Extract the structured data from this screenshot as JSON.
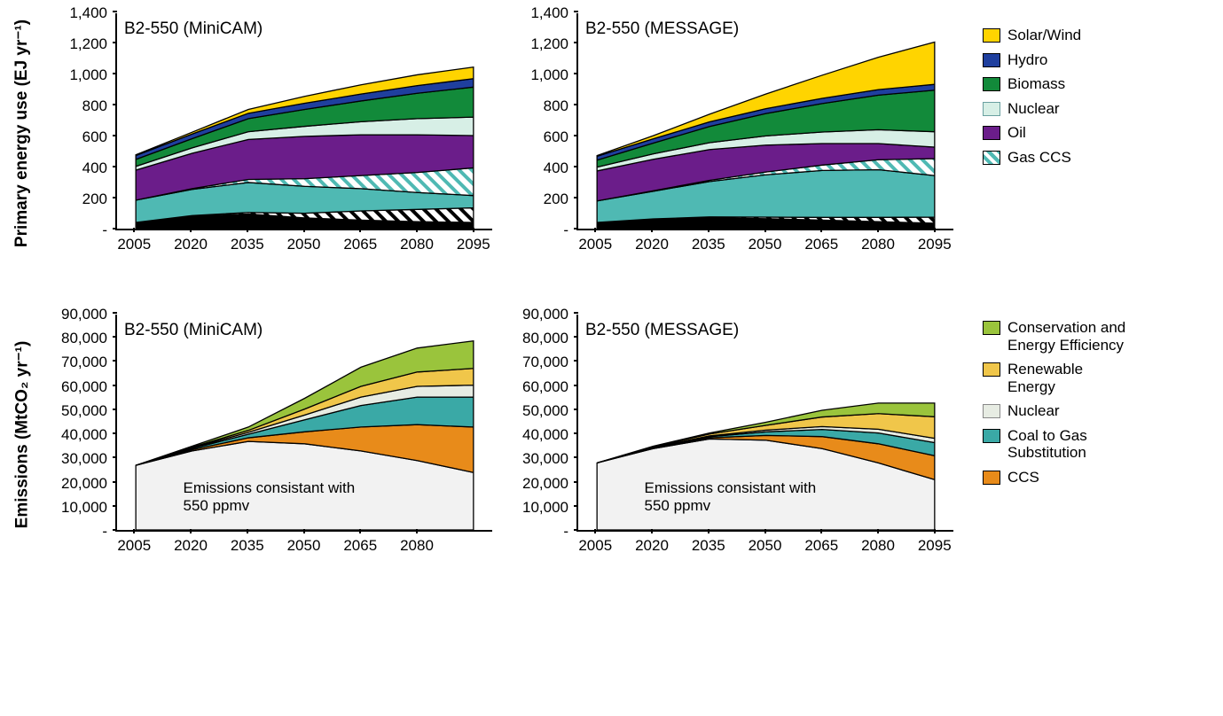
{
  "background_color": "#ffffff",
  "axis_color": "#000000",
  "font_family": "Arial",
  "tick_fontsize": 17,
  "title_fontsize": 19,
  "label_fontsize": 19,
  "ylabel_top": "Primary energy use (EJ yr⁻¹)",
  "ylabel_bottom": "Emissions (MtCO₂ yr⁻¹)",
  "colors": {
    "solar_wind": "#ffd400",
    "hydro": "#1f3f9e",
    "biomass": "#128a3a",
    "nuclear": "#d7efe6",
    "oil": "#6b1d8a",
    "gas_ccs_hatch": "#4fb9b3",
    "gas": "#4fb9b3",
    "coal_ccs_hatch": "#000000",
    "coal": "#000000",
    "conservation": "#9ac43c",
    "renewable": "#f0c64a",
    "nuclear_em": "#e7ece3",
    "coal_to_gas": "#3aa9a6",
    "ccs": "#e88b1a",
    "baseline": "#f2f2f2"
  },
  "row_top": {
    "x": [
      2005,
      2020,
      2035,
      2050,
      2065,
      2080,
      2095
    ],
    "xlim": [
      2000,
      2100
    ],
    "ylim": [
      0,
      1400
    ],
    "yticks": [
      "-",
      "200",
      "400",
      "600",
      "800",
      "1,000",
      "1,200",
      "1,400"
    ],
    "ytick_vals": [
      0,
      200,
      400,
      600,
      800,
      1000,
      1200,
      1400
    ],
    "legend": [
      {
        "key": "solar_wind",
        "label": "Solar/Wind"
      },
      {
        "key": "hydro",
        "label": "Hydro"
      },
      {
        "key": "biomass",
        "label": "Biomass"
      },
      {
        "key": "nuclear",
        "label": "Nuclear",
        "border": "#6aa0a0"
      },
      {
        "key": "oil",
        "label": "Oil"
      },
      {
        "key": "gas_ccs_hatch",
        "label": "Gas CCS",
        "hatch": true,
        "hatch_bg": "#ffffff"
      }
    ],
    "panels": [
      {
        "title": "B2-550 (MiniCAM)",
        "stacks": [
          {
            "key": "coal",
            "vals": [
              40,
              80,
              95,
              70,
              55,
              45,
              40
            ]
          },
          {
            "key": "coal_ccs_hatch",
            "vals": [
              0,
              5,
              10,
              30,
              60,
              80,
              95
            ],
            "hatch": true,
            "hatch_bg": "#ffffff",
            "hatch_fg": "#000000"
          },
          {
            "key": "gas",
            "vals": [
              145,
              170,
              195,
              175,
              145,
              110,
              80
            ]
          },
          {
            "key": "gas_ccs_hatch",
            "vals": [
              0,
              5,
              20,
              50,
              85,
              130,
              180
            ],
            "hatch": true,
            "hatch_bg": "#ffffff",
            "hatch_fg": "#4fb9b3"
          },
          {
            "key": "oil",
            "vals": [
              195,
              230,
              260,
              275,
              265,
              245,
              210
            ]
          },
          {
            "key": "nuclear",
            "vals": [
              25,
              35,
              50,
              65,
              85,
              105,
              120
            ]
          },
          {
            "key": "biomass",
            "vals": [
              45,
              60,
              85,
              110,
              135,
              165,
              195
            ]
          },
          {
            "key": "hydro",
            "vals": [
              25,
              30,
              35,
              40,
              45,
              50,
              55
            ]
          },
          {
            "key": "solar_wind",
            "vals": [
              5,
              12,
              25,
              45,
              60,
              70,
              75
            ]
          }
        ]
      },
      {
        "title": "B2-550 (MESSAGE)",
        "stacks": [
          {
            "key": "coal",
            "vals": [
              40,
              60,
              70,
              65,
              55,
              45,
              35
            ]
          },
          {
            "key": "coal_ccs_hatch",
            "vals": [
              0,
              3,
              6,
              10,
              18,
              28,
              40
            ],
            "hatch": true,
            "hatch_bg": "#ffffff",
            "hatch_fg": "#000000"
          },
          {
            "key": "gas",
            "vals": [
              140,
              180,
              230,
              275,
              305,
              310,
              270
            ]
          },
          {
            "key": "gas_ccs_hatch",
            "vals": [
              0,
              3,
              8,
              18,
              35,
              65,
              110
            ],
            "hatch": true,
            "hatch_bg": "#ffffff",
            "hatch_fg": "#4fb9b3"
          },
          {
            "key": "oil",
            "vals": [
              195,
              205,
              200,
              175,
              140,
              105,
              75
            ]
          },
          {
            "key": "nuclear",
            "vals": [
              25,
              35,
              45,
              60,
              75,
              90,
              100
            ]
          },
          {
            "key": "biomass",
            "vals": [
              45,
              70,
              105,
              145,
              185,
              225,
              270
            ]
          },
          {
            "key": "hydro",
            "vals": [
              25,
              28,
              30,
              32,
              34,
              36,
              38
            ]
          },
          {
            "key": "solar_wind",
            "vals": [
              5,
              20,
              50,
              95,
              150,
              210,
              275
            ]
          }
        ]
      }
    ]
  },
  "row_bottom": {
    "x": [
      2005,
      2020,
      2035,
      2050,
      2065,
      2080,
      2095
    ],
    "xlim": [
      2000,
      2100
    ],
    "x_display_max_minicam": 2090,
    "ylim": [
      0,
      90000
    ],
    "yticks": [
      "-",
      "10,000",
      "20,000",
      "30,000",
      "40,000",
      "50,000",
      "60,000",
      "70,000",
      "80,000",
      "90,000"
    ],
    "ytick_vals": [
      0,
      10000,
      20000,
      30000,
      40000,
      50000,
      60000,
      70000,
      80000,
      90000
    ],
    "legend": [
      {
        "key": "conservation",
        "label": "Conservation and\nEnergy Efficiency"
      },
      {
        "key": "renewable",
        "label": "Renewable\nEnergy"
      },
      {
        "key": "nuclear_em",
        "label": "Nuclear",
        "border": "#888888"
      },
      {
        "key": "coal_to_gas",
        "label": "Coal to Gas\nSubstitution"
      },
      {
        "key": "ccs",
        "label": "CCS"
      }
    ],
    "annotation": "Emissions consistant with\n550 ppmv",
    "panels": [
      {
        "title": "B2-550 (MiniCAM)",
        "x_ticks": [
          2005,
          2020,
          2035,
          2050,
          2065,
          2080
        ],
        "stacks": [
          {
            "key": "baseline",
            "vals": [
              27000,
              33000,
              37000,
              36000,
              33000,
              29000,
              24000
            ]
          },
          {
            "key": "ccs",
            "vals": [
              0,
              500,
              1500,
              5000,
              10000,
              15000,
              19000
            ]
          },
          {
            "key": "coal_to_gas",
            "vals": [
              0,
              500,
              1500,
              5000,
              9000,
              11500,
              12500
            ]
          },
          {
            "key": "nuclear_em",
            "vals": [
              0,
              300,
              800,
              2000,
              3500,
              4500,
              5000
            ]
          },
          {
            "key": "renewable",
            "vals": [
              0,
              300,
              800,
              2500,
              4500,
              6000,
              7000
            ]
          },
          {
            "key": "conservation",
            "vals": [
              0,
              400,
              1400,
              4500,
              8000,
              10000,
              11500
            ]
          }
        ]
      },
      {
        "title": "B2-550 (MESSAGE)",
        "x_ticks": [
          2005,
          2020,
          2035,
          2050,
          2065,
          2080,
          2095
        ],
        "stacks": [
          {
            "key": "baseline",
            "vals": [
              28000,
              34000,
              38000,
              37500,
              34000,
              28000,
              21000
            ]
          },
          {
            "key": "ccs",
            "vals": [
              0,
              200,
              500,
              2000,
              5000,
              8000,
              10000
            ]
          },
          {
            "key": "coal_to_gas",
            "vals": [
              0,
              200,
              500,
              1500,
              3000,
              4500,
              5500
            ]
          },
          {
            "key": "nuclear_em",
            "vals": [
              0,
              100,
              300,
              700,
              1200,
              1600,
              1800
            ]
          },
          {
            "key": "renewable",
            "vals": [
              0,
              300,
              800,
              2000,
              4000,
              6500,
              9000
            ]
          },
          {
            "key": "conservation",
            "vals": [
              0,
              200,
              400,
              1300,
              2800,
              4400,
              5700
            ]
          }
        ]
      }
    ]
  }
}
